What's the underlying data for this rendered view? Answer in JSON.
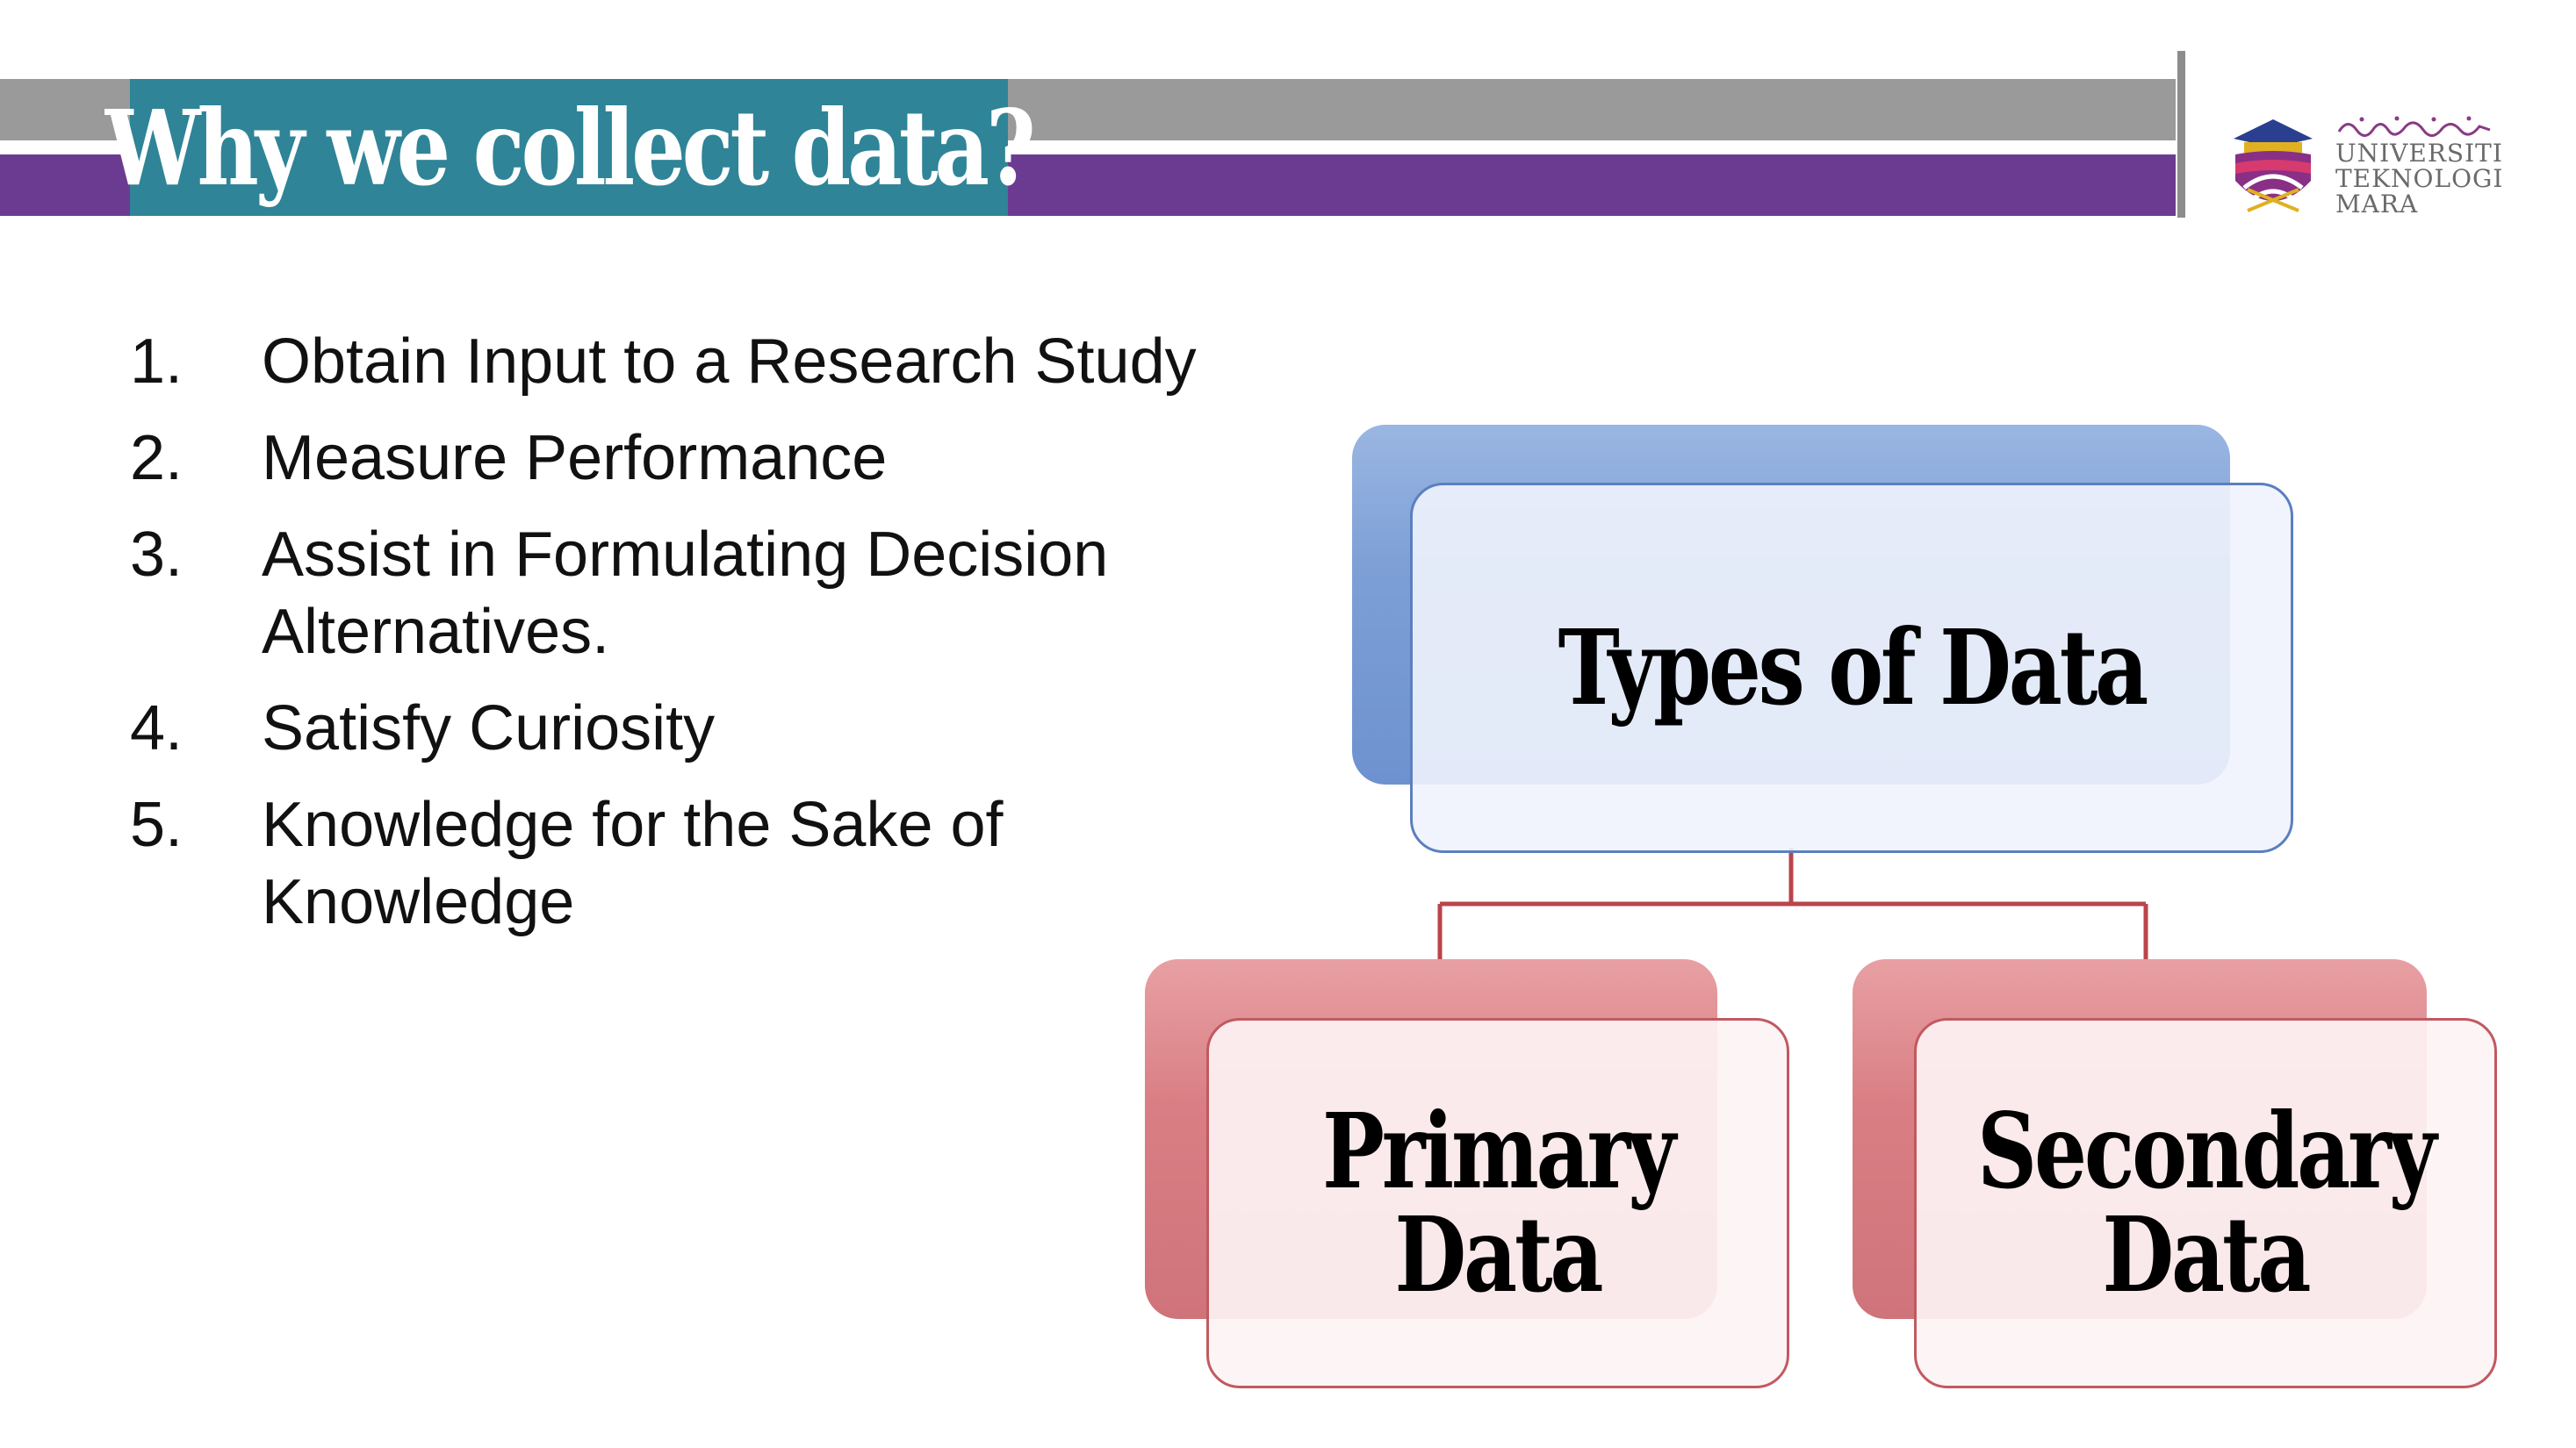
{
  "slide": {
    "title": "Why we collect data?"
  },
  "logo": {
    "icon": "uitm-crest-icon",
    "lines": [
      "UNIVERSITI",
      "TEKNOLOGI",
      "MARA"
    ]
  },
  "reasons": [
    {
      "num": "1.",
      "text": "Obtain Input to a Research Study"
    },
    {
      "num": "2.",
      "text": "Measure Performance"
    },
    {
      "num": "3.",
      "text": "Assist in Formulating Decision Alternatives."
    },
    {
      "num": "4.",
      "text": "Satisfy Curiosity"
    },
    {
      "num": "5.",
      "text": "Knowledge for the Sake of Knowledge"
    }
  ],
  "diagram": {
    "root": {
      "label": "Types of Data"
    },
    "children": [
      {
        "line1": "Primary",
        "line2": "Data"
      },
      {
        "line1": "Secondary",
        "line2": "Data"
      }
    ]
  },
  "colors": {
    "title_bg": "#2f8497",
    "band_gray": "#9a9a9a",
    "band_purple": "#6b3b92",
    "root_node": "#7d9fd6",
    "child_node": "#d97f84",
    "connector": "#b8454b"
  }
}
